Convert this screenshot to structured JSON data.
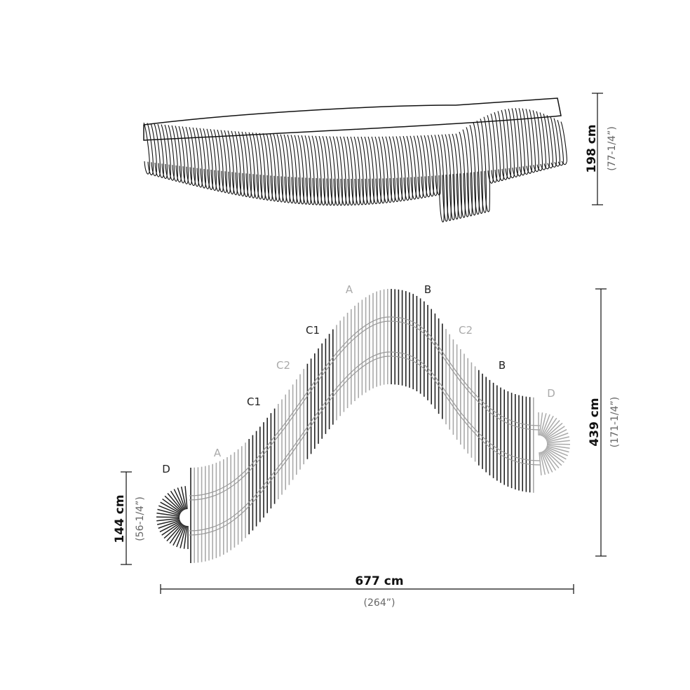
{
  "dimensions": {
    "height": {
      "metric": "198 cm",
      "imperial": "(77-1/4”)"
    },
    "depth": {
      "metric": "439 cm",
      "imperial": "(171-1/4”)"
    },
    "end_depth": {
      "metric": "144 cm",
      "imperial": "(56-1/4”)"
    },
    "length": {
      "metric": "677 cm",
      "imperial": "(264”)"
    }
  },
  "section_labels": [
    {
      "text": "D",
      "color": "#222222"
    },
    {
      "text": "A",
      "color": "#aaaaaa"
    },
    {
      "text": "C1",
      "color": "#222222"
    },
    {
      "text": "C2",
      "color": "#aaaaaa"
    },
    {
      "text": "C1",
      "color": "#222222"
    },
    {
      "text": "A",
      "color": "#aaaaaa"
    },
    {
      "text": "B",
      "color": "#222222"
    },
    {
      "text": "C2",
      "color": "#aaaaaa"
    },
    {
      "text": "B",
      "color": "#222222"
    },
    {
      "text": "D",
      "color": "#aaaaaa"
    }
  ]
}
